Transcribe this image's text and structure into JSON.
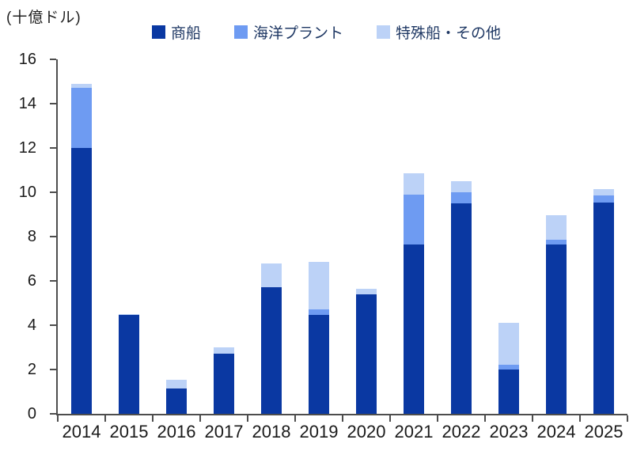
{
  "unit_label": "(十億ドル)",
  "colors": {
    "axis": "#4d4d4d",
    "axis_text": "#1a1a1a",
    "legend_text": "#1f3864",
    "background": "#ffffff",
    "series_dark_blue": "#0a38a2",
    "series_medium_blue": "#6e9bf2",
    "series_light_blue": "#bcd2f7"
  },
  "chart_data": {
    "type": "bar",
    "stacked": true,
    "title": "",
    "unit": "(十億ドル)",
    "ylabel": "(十億ドル)",
    "xlabel": "",
    "categories": [
      "2014",
      "2015",
      "2016",
      "2017",
      "2018",
      "2019",
      "2020",
      "2021",
      "2022",
      "2023",
      "2024",
      "2025"
    ],
    "series": [
      {
        "name": "商船",
        "color": "#0a38a2",
        "values": [
          12.0,
          4.45,
          1.15,
          2.7,
          5.7,
          4.45,
          5.4,
          7.65,
          9.5,
          2.0,
          7.65,
          9.55
        ]
      },
      {
        "name": "海洋プラント",
        "color": "#6e9bf2",
        "values": [
          2.7,
          0,
          0,
          0,
          0,
          0.25,
          0,
          2.25,
          0.5,
          0.2,
          0.2,
          0.3
        ]
      },
      {
        "name": "特殊船・その他",
        "color": "#bcd2f7",
        "values": [
          0.2,
          0.05,
          0.4,
          0.3,
          1.1,
          2.15,
          0.25,
          0.95,
          0.5,
          1.9,
          1.1,
          0.3
        ]
      }
    ],
    "totals": [
      14.9,
      4.5,
      1.55,
      3.0,
      6.8,
      6.85,
      5.65,
      10.85,
      10.5,
      4.1,
      8.95,
      10.15
    ],
    "ylim": [
      0,
      16
    ],
    "yticks": [
      0,
      2,
      4,
      6,
      8,
      10,
      12,
      14,
      16
    ],
    "legend_position": "top",
    "grid": false
  }
}
